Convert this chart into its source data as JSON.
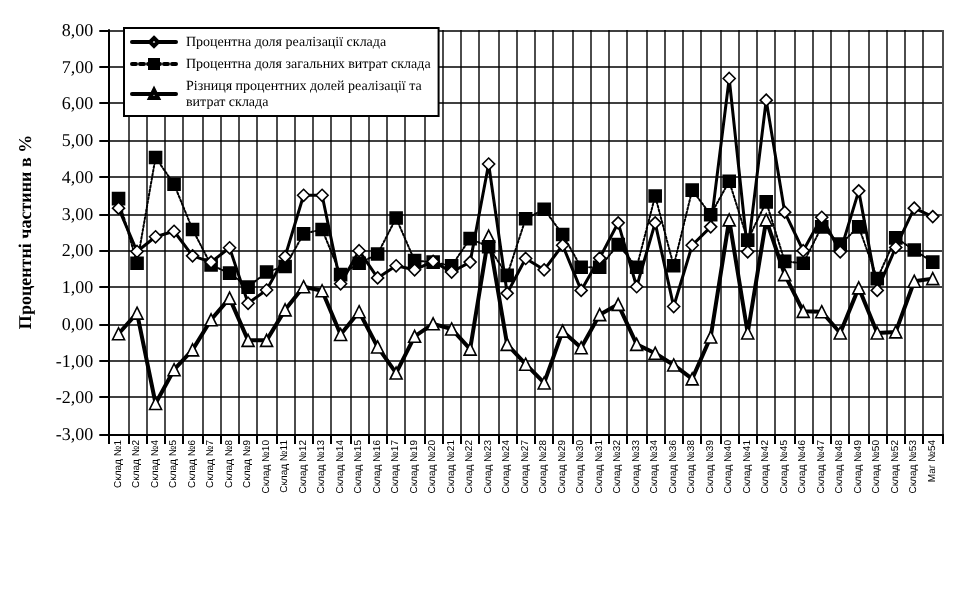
{
  "chart_data": {
    "type": "line",
    "ylabel": "Процентні частини в %",
    "categories": [
      "Склад №1",
      "Склад №2",
      "Склад №4",
      "Склад №5",
      "Склад №6",
      "Склад №7",
      "Склад №8",
      "Склад №9",
      "Склад №10",
      "Склад №11",
      "Склад №12",
      "Склад №13",
      "Склад №14",
      "Склад №15",
      "Склад №16",
      "Склад №17",
      "Склад №19",
      "Склад №20",
      "Склад №21",
      "Склад №22",
      "Склад №23",
      "Склад №24",
      "Склад №27",
      "Склад №28",
      "Склад №29",
      "Склад №30",
      "Склад №31",
      "Склад №32",
      "Склад №33",
      "Склад №34",
      "Склад №36",
      "Склад №38",
      "Склад №39",
      "Склад №40",
      "Склад №41",
      "Склад №42",
      "Склад №45",
      "Склад №46",
      "Склад №47",
      "Склад №48",
      "Склад №49",
      "Склад №50",
      "Склад №52",
      "Склад №53",
      "Маг №54"
    ],
    "series": [
      {
        "name": "Процентна доля реалізації склада",
        "color": "#000000",
        "marker": "diamond",
        "line_style": "solid",
        "values": [
          3.15,
          1.97,
          2.37,
          2.52,
          1.85,
          1.68,
          2.07,
          0.56,
          0.92,
          1.83,
          3.5,
          3.5,
          1.09,
          1.99,
          1.25,
          1.58,
          1.47,
          1.7,
          1.41,
          1.68,
          4.35,
          0.83,
          1.78,
          1.47,
          2.14,
          0.91,
          1.79,
          2.75,
          1.01,
          2.75,
          0.47,
          2.14,
          2.64,
          6.68,
          1.96,
          6.09,
          3.04,
          1.99,
          2.9,
          1.96,
          3.62,
          0.91,
          2.08,
          3.15,
          2.92
        ]
      },
      {
        "name": "Процентна доля загальних витрат склада",
        "color": "#000000",
        "marker": "square",
        "line_style": "dotted",
        "values": [
          3.41,
          1.65,
          4.53,
          3.8,
          2.57,
          1.6,
          1.38,
          1.0,
          1.41,
          1.56,
          2.45,
          2.57,
          1.34,
          1.65,
          1.9,
          2.88,
          1.72,
          1.68,
          1.58,
          2.32,
          2.1,
          1.32,
          2.86,
          3.12,
          2.43,
          1.54,
          1.54,
          2.16,
          1.54,
          3.48,
          1.58,
          3.64,
          2.97,
          3.88,
          2.28,
          3.32,
          1.7,
          1.65,
          2.64,
          2.17,
          2.64,
          1.23,
          2.34,
          2.01,
          1.68
        ]
      },
      {
        "name": "Різниця процентних долей реалізації та витрат склада",
        "color": "#000000",
        "marker": "triangle",
        "line_style": "solid",
        "values": [
          -0.27,
          0.29,
          -2.17,
          -1.25,
          -0.71,
          0.11,
          0.7,
          -0.45,
          -0.45,
          0.38,
          1.01,
          0.9,
          -0.29,
          0.33,
          -0.63,
          -1.34,
          -0.34,
          0.0,
          -0.14,
          -0.69,
          2.39,
          -0.56,
          -1.1,
          -1.61,
          -0.2,
          -0.65,
          0.25,
          0.53,
          -0.56,
          -0.8,
          -1.12,
          -1.5,
          -0.36,
          2.83,
          -0.25,
          2.83,
          1.34,
          0.34,
          0.33,
          -0.25,
          0.98,
          -0.25,
          -0.22,
          1.16,
          1.23
        ]
      }
    ],
    "ylim": [
      -3,
      8
    ],
    "yticks": [
      {
        "value": -3,
        "label": "-3,00"
      },
      {
        "value": -2,
        "label": "-2,00"
      },
      {
        "value": -1,
        "label": "-1,00"
      },
      {
        "value": 0,
        "label": "0,00"
      },
      {
        "value": 1,
        "label": "1,00"
      },
      {
        "value": 2,
        "label": "2,00"
      },
      {
        "value": 3,
        "label": "3,00"
      },
      {
        "value": 4,
        "label": "4,00"
      },
      {
        "value": 5,
        "label": "5,00"
      },
      {
        "value": 6,
        "label": "6,00"
      },
      {
        "value": 7,
        "label": "7,00"
      },
      {
        "value": 8,
        "label": "8,00"
      }
    ],
    "grid": true,
    "legend": "top left"
  }
}
